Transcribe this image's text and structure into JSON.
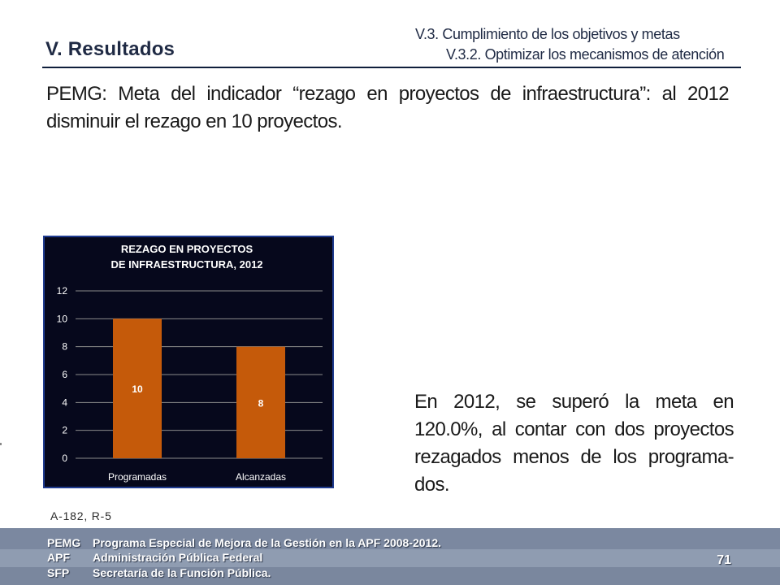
{
  "header": {
    "section_title": "V. Resultados",
    "subtitle_1": "V.3. Cumplimiento de los objetivos y metas",
    "subtitle_2": "V.3.2. Optimizar los mecanismos de atención"
  },
  "intro_text": "PEMG: Meta del indicador “rezago en proyectos de infraestructura”: al 2012 disminuir el rezago en 10 proyectos.",
  "result_text": "En 2012, se superó la meta en 120.0%, al contar con dos proyectos rezagados menos de los programa-dos.",
  "reference": "A-182, R-5",
  "footer": {
    "glossary": [
      {
        "abbr": "PEMG",
        "text": "Programa Especial de Mejora de la Gestión en la APF 2008-2012."
      },
      {
        "abbr": "APF",
        "text": "Administración Pública Federal"
      },
      {
        "abbr": "SFP",
        "text": "Secretaría de la  Función Pública."
      }
    ],
    "page_number": "71"
  },
  "colors": {
    "chart_background": "#06081c",
    "bar": "#c55a0a",
    "title_navy": "#1f2a44",
    "footer": "#8795ab"
  },
  "chart_data": {
    "type": "bar",
    "title": "REZAGO EN PROYECTOS DE INFRAESTRUCTURA, 2012",
    "categories": [
      "Programadas",
      "Alcanzadas"
    ],
    "values": [
      10,
      8
    ],
    "data_labels": [
      "10",
      "8"
    ],
    "ylim": [
      0,
      12
    ],
    "yticks": [
      0,
      2,
      4,
      6,
      8,
      10,
      12
    ],
    "grid": true,
    "legend": "none"
  }
}
